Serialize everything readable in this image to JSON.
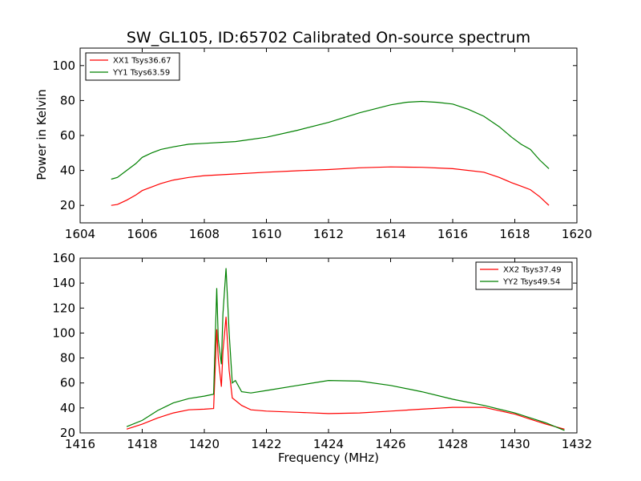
{
  "chart_data": [
    {
      "type": "line",
      "title": "SW_GL105, ID:65702 Calibrated On-source spectrum",
      "xlabel": "",
      "ylabel": "Power in Kelvin",
      "xlim": [
        1604,
        1620
      ],
      "ylim": [
        10,
        110
      ],
      "xticks": [
        "1604",
        "1606",
        "1608",
        "1610",
        "1612",
        "1614",
        "1616",
        "1618",
        "1620"
      ],
      "yticks": [
        "20",
        "40",
        "60",
        "80",
        "100"
      ],
      "legend_position": "top-left",
      "grid": false,
      "series": [
        {
          "name": "XX1 Tsys36.67",
          "color": "#ff0000",
          "x": [
            1605.0,
            1605.2,
            1605.5,
            1605.8,
            1606.0,
            1606.3,
            1606.6,
            1607.0,
            1607.5,
            1608.0,
            1609.0,
            1610.0,
            1611.0,
            1612.0,
            1613.0,
            1614.0,
            1615.0,
            1616.0,
            1617.0,
            1617.5,
            1617.9,
            1618.2,
            1618.5,
            1618.8,
            1619.1
          ],
          "y": [
            20,
            20.5,
            23,
            26,
            28.5,
            30.5,
            32.5,
            34.5,
            36,
            37,
            38,
            39,
            39.8,
            40.5,
            41.5,
            42,
            41.8,
            41,
            39,
            36,
            33,
            31,
            29,
            25,
            20
          ]
        },
        {
          "name": "YY1 Tsys63.59",
          "color": "#008000",
          "x": [
            1605.0,
            1605.2,
            1605.5,
            1605.8,
            1606.0,
            1606.3,
            1606.6,
            1607.0,
            1607.5,
            1608.0,
            1609.0,
            1610.0,
            1611.0,
            1612.0,
            1613.0,
            1614.0,
            1614.5,
            1615.0,
            1615.5,
            1616.0,
            1616.5,
            1617.0,
            1617.5,
            1617.9,
            1618.2,
            1618.5,
            1618.8,
            1619.1
          ],
          "y": [
            35,
            36,
            40,
            44,
            47.5,
            50,
            52,
            53.5,
            55,
            55.5,
            56.5,
            59,
            63,
            67.5,
            73,
            77.5,
            79,
            79.5,
            79,
            78,
            75,
            71,
            65,
            59,
            55,
            52,
            46,
            41
          ]
        }
      ]
    },
    {
      "type": "line",
      "title": "",
      "xlabel": "Frequency (MHz)",
      "ylabel": "",
      "xlim": [
        1416,
        1432
      ],
      "ylim": [
        20,
        160
      ],
      "xticks": [
        "1416",
        "1418",
        "1420",
        "1422",
        "1424",
        "1426",
        "1428",
        "1430",
        "1432"
      ],
      "yticks": [
        "20",
        "40",
        "60",
        "80",
        "100",
        "120",
        "140",
        "160"
      ],
      "legend_position": "top-right",
      "grid": false,
      "series": [
        {
          "name": "XX2 Tsys37.49",
          "color": "#ff0000",
          "x": [
            1417.5,
            1418.0,
            1418.5,
            1419.0,
            1419.5,
            1420.0,
            1420.3,
            1420.4,
            1420.45,
            1420.55,
            1420.6,
            1420.7,
            1420.8,
            1420.9,
            1421.0,
            1421.2,
            1421.5,
            1422.0,
            1423.0,
            1424.0,
            1425.0,
            1426.0,
            1427.0,
            1428.0,
            1429.0,
            1430.0,
            1430.5,
            1431.0,
            1431.6
          ],
          "y": [
            23,
            27,
            32,
            36,
            38.5,
            39,
            39.5,
            103,
            80,
            57,
            85,
            113,
            70,
            48,
            46,
            42,
            38.5,
            37.5,
            36.5,
            35.5,
            36,
            37.5,
            39,
            40.5,
            40.5,
            35,
            31,
            27,
            23
          ]
        },
        {
          "name": "YY2 Tsys49.54",
          "color": "#008000",
          "x": [
            1417.5,
            1418.0,
            1418.5,
            1419.0,
            1419.5,
            1420.0,
            1420.3,
            1420.4,
            1420.45,
            1420.55,
            1420.6,
            1420.7,
            1420.8,
            1420.9,
            1421.0,
            1421.2,
            1421.5,
            1422.0,
            1423.0,
            1424.0,
            1425.0,
            1426.0,
            1427.0,
            1428.0,
            1429.0,
            1430.0,
            1430.5,
            1431.0,
            1431.6
          ],
          "y": [
            25,
            30,
            38,
            44,
            47.5,
            49.5,
            51,
            136,
            95,
            75,
            115,
            152,
            100,
            60,
            62,
            53,
            52,
            54,
            58,
            62,
            61.5,
            58,
            53,
            47,
            42,
            36,
            32,
            28,
            22
          ]
        }
      ]
    }
  ]
}
